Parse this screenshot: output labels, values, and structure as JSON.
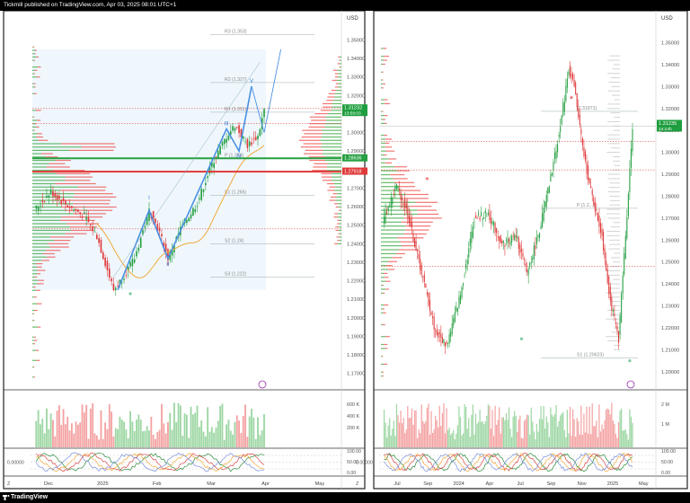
{
  "header": {
    "title": "Tickmill published on TradingView.com, Apr 03, 2025 08:01 UTC+1"
  },
  "footer": {
    "brand": "TradingView"
  },
  "colors": {
    "up": "#26a042",
    "down": "#e03a3a",
    "vp_up": "#4caf50",
    "vp_down": "#ef5350",
    "ma": "#f2a93b",
    "wave": "#4a90e2"
  },
  "chart_data": [
    {
      "type": "candlestick",
      "currency": "USD",
      "x_ticks": [
        "Dec",
        "2025",
        "Feb",
        "Mar",
        "Apr",
        "May"
      ],
      "y_ticks": [
        "1.35000",
        "1.34000",
        "1.33000",
        "1.32000",
        "1.31000",
        "1.30000",
        "1.29000",
        "1.28000",
        "1.27000",
        "1.26000",
        "1.25000",
        "1.24000",
        "1.23000",
        "1.22000",
        "1.21000",
        "1.20000",
        "1.19000",
        "1.18000",
        "1.17000"
      ],
      "ylim": [
        1.165,
        1.358
      ],
      "price_tag": {
        "value": "1.31232",
        "countdown": "13:58:03"
      },
      "level_tags": [
        {
          "value": "1.28636"
        },
        {
          "value": "1.27918"
        }
      ],
      "pivots": [
        {
          "label": "R3 (1.353)",
          "value": 1.353
        },
        {
          "label": "R2 (1.327)",
          "value": 1.327
        },
        {
          "label": "R1 (1.311)",
          "value": 1.311
        },
        {
          "label": "P (1.286)",
          "value": 1.286
        },
        {
          "label": "S1 (1.266)",
          "value": 1.266
        },
        {
          "label": "S2 (1.24)",
          "value": 1.24
        },
        {
          "label": "S3 (1.222)",
          "value": 1.222
        }
      ],
      "wave_labels": [
        "I",
        "II",
        "III",
        "IV",
        "V"
      ],
      "volume_ticks": [
        "600 K",
        "400 K",
        "200 K"
      ],
      "osc_ticks": [
        "100.00",
        "50.00",
        "0.00"
      ],
      "osc_value": "0.00000"
    },
    {
      "type": "candlestick",
      "currency": "USD",
      "x_ticks": [
        "Jul",
        "Sep",
        "2024",
        "Apr",
        "Jul",
        "Sep",
        "Nov",
        "2025",
        "May"
      ],
      "y_ticks": [
        "1.35000",
        "1.34000",
        "1.33000",
        "1.32000",
        "1.31000",
        "1.30000",
        "1.29000",
        "1.28000",
        "1.27000",
        "1.26000",
        "1.25000",
        "1.24000",
        "1.23000",
        "1.22000",
        "1.21000",
        "1.20000"
      ],
      "ylim": [
        1.195,
        1.358
      ],
      "price_tag": {
        "value": "1.31235",
        "countdown": "14:14h"
      },
      "pivots": [
        {
          "label": "(1.31871)",
          "value": 1.3187
        },
        {
          "label": "P (1.2...)",
          "value": 1.2745
        },
        {
          "label": "S1 (1.20623)",
          "value": 1.2062
        }
      ],
      "volume_ticks": [
        "2 M",
        "1 M"
      ],
      "osc_ticks": [
        "100.00",
        "50.00",
        "0.00"
      ],
      "osc_value": "0.00000"
    }
  ]
}
